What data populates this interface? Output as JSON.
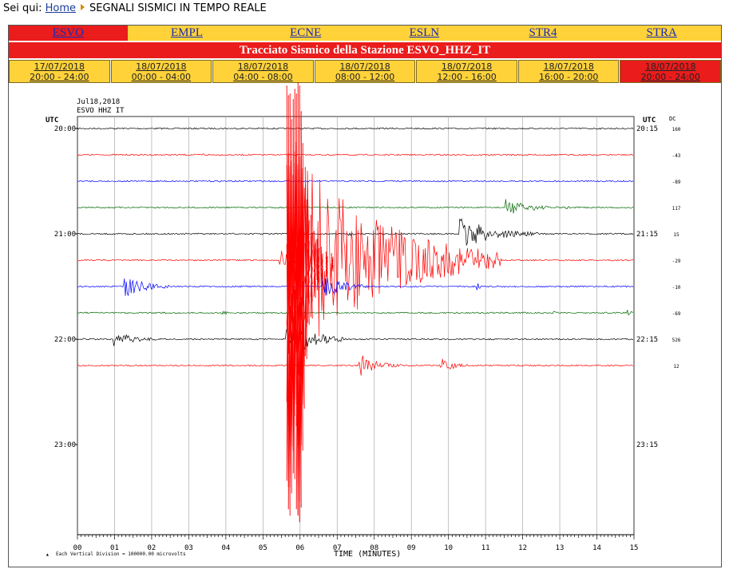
{
  "breadcrumb": {
    "prefix": "Sei qui:",
    "home": "Home",
    "current": "SEGNALI SISMICI IN TEMPO REALE"
  },
  "stations": [
    "ESVO",
    "EMPL",
    "ECNE",
    "ESLN",
    "STR4",
    "STRA"
  ],
  "active_station": 0,
  "title": "Tracciato Sismico della Stazione ESVO_HHZ_IT",
  "time_tabs": [
    {
      "date": "17/07/2018",
      "range": "20:00 - 24:00"
    },
    {
      "date": "18/07/2018",
      "range": "00:00 - 04:00"
    },
    {
      "date": "18/07/2018",
      "range": "04:00 - 08:00"
    },
    {
      "date": "18/07/2018",
      "range": "08:00 - 12:00"
    },
    {
      "date": "18/07/2018",
      "range": "12:00 - 16:00"
    },
    {
      "date": "18/07/2018",
      "range": "16:00 - 20:00"
    },
    {
      "date": "18/07/2018",
      "range": "20:00 - 24:00"
    }
  ],
  "active_tab": 6,
  "plot": {
    "header_date": "Jul18,2018",
    "header_station": "ESVO HHZ IT",
    "utc_label": "UTC",
    "dc_label": "DC",
    "left_hours": [
      "20:00",
      "21:00",
      "22:00",
      "23:00"
    ],
    "right_hours": [
      "20:15",
      "21:15",
      "22:15",
      "23:15"
    ],
    "dc_values": [
      "160",
      "-43",
      "-89",
      "117",
      "15",
      "-29",
      "-10",
      "-69",
      "526",
      "12"
    ],
    "minute_labels": [
      "00",
      "01",
      "02",
      "03",
      "04",
      "05",
      "06",
      "07",
      "08",
      "09",
      "10",
      "11",
      "12",
      "13",
      "14",
      "15"
    ],
    "xlabel": "TIME (MINUTES)",
    "footnote": "Each Vertical Division = 100000.00 microvolts",
    "trace_colors": [
      "#000000",
      "#ff0000",
      "#0000ff",
      "#006600"
    ]
  }
}
